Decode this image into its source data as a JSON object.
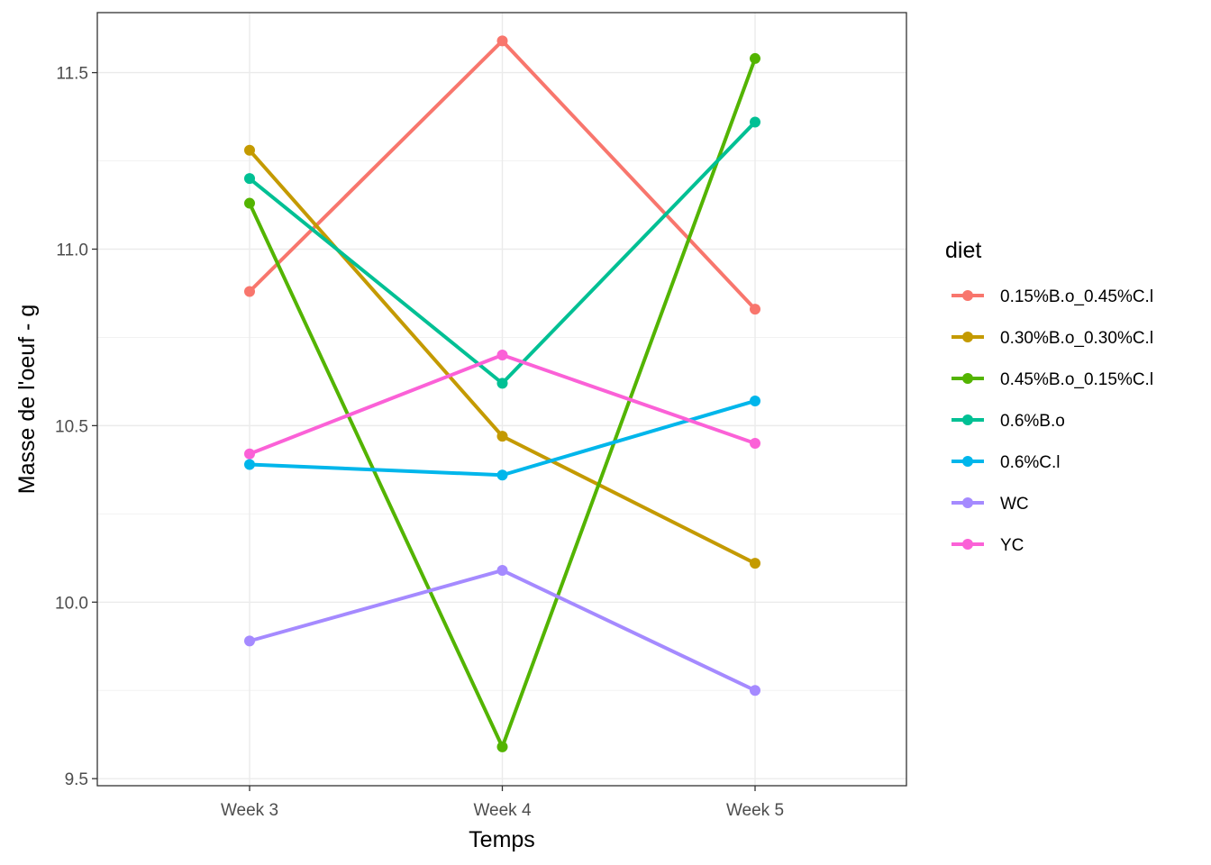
{
  "chart_data": {
    "type": "line",
    "xlabel": "Temps",
    "ylabel": "Masse de l'oeuf - g",
    "categories": [
      "Week 3",
      "Week 4",
      "Week 5"
    ],
    "ylim": [
      9.48,
      11.67
    ],
    "y_ticks": [
      9.5,
      10.0,
      10.5,
      11.0,
      11.5
    ],
    "y_tick_labels": [
      "9.5",
      "10.0",
      "10.5",
      "11.0",
      "11.5"
    ],
    "grid": true,
    "legend": {
      "title": "diet",
      "position": "right"
    },
    "series": [
      {
        "name": "0.15%B.o_0.45%C.l",
        "color": "#F8766D",
        "values": [
          10.88,
          11.59,
          10.83
        ]
      },
      {
        "name": "0.30%B.o_0.30%C.l",
        "color": "#C49A00",
        "values": [
          11.28,
          10.47,
          10.11
        ]
      },
      {
        "name": "0.45%B.o_0.15%C.l",
        "color": "#53B400",
        "values": [
          11.13,
          9.59,
          11.54
        ]
      },
      {
        "name": "0.6%B.o",
        "color": "#00C094",
        "values": [
          11.2,
          10.62,
          11.36
        ]
      },
      {
        "name": "0.6%C.l",
        "color": "#00B6EB",
        "values": [
          10.39,
          10.36,
          10.57
        ]
      },
      {
        "name": "WC",
        "color": "#A58AFF",
        "values": [
          9.89,
          10.09,
          9.75
        ]
      },
      {
        "name": "YC",
        "color": "#FB61D7",
        "values": [
          10.42,
          10.7,
          10.45
        ]
      }
    ]
  }
}
